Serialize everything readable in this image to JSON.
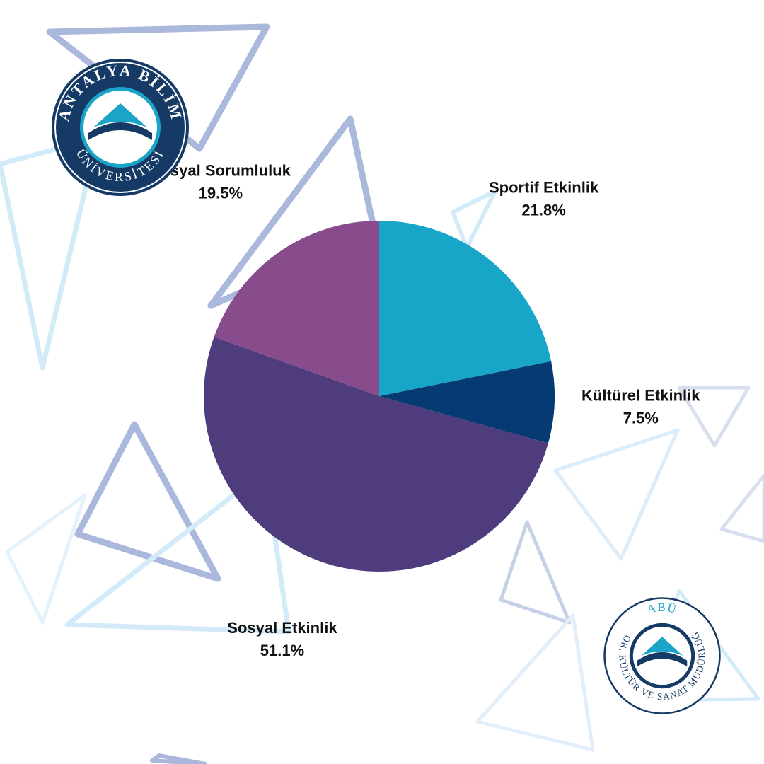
{
  "colors": {
    "sportif": "#17a5c8",
    "kulturel": "#063a72",
    "sosyal_etkinlik": "#4e3c7c",
    "sosyal_sorumluluk": "#884c8d",
    "navy": "#163a66",
    "teal": "#1aa5c8",
    "deco_blue": "#9fb0d8",
    "deco_light": "#cfe9f8"
  },
  "chart_data": {
    "type": "pie",
    "title": "",
    "start_angle_deg": 0,
    "direction": "clockwise",
    "categories": [
      "Sportif Etkinlik",
      "Kültürel Etkinlik",
      "Sosyal Etkinlik",
      "Sosyal Sorumluluk"
    ],
    "values": [
      21.8,
      7.5,
      51.1,
      19.5
    ],
    "labels": [
      "21.8%",
      "7.5%",
      "51.1%",
      "19.5%"
    ],
    "slice_colors": [
      "#17a5c8",
      "#063a72",
      "#4e3c7c",
      "#884c8d"
    ]
  },
  "logos": {
    "university": {
      "icon": "antalya-bilim-universitesi-logo",
      "top_text": "ANTALYA BİLİM",
      "bottom_text": "ÜNİVERSİTESİ"
    },
    "department": {
      "icon": "abu-spor-kultur-sanat-logo",
      "top_text": "ABÜ",
      "ring_text": "SPOR, KÜLTÜR VE SANAT MÜDÜRLÜĞÜ"
    }
  }
}
